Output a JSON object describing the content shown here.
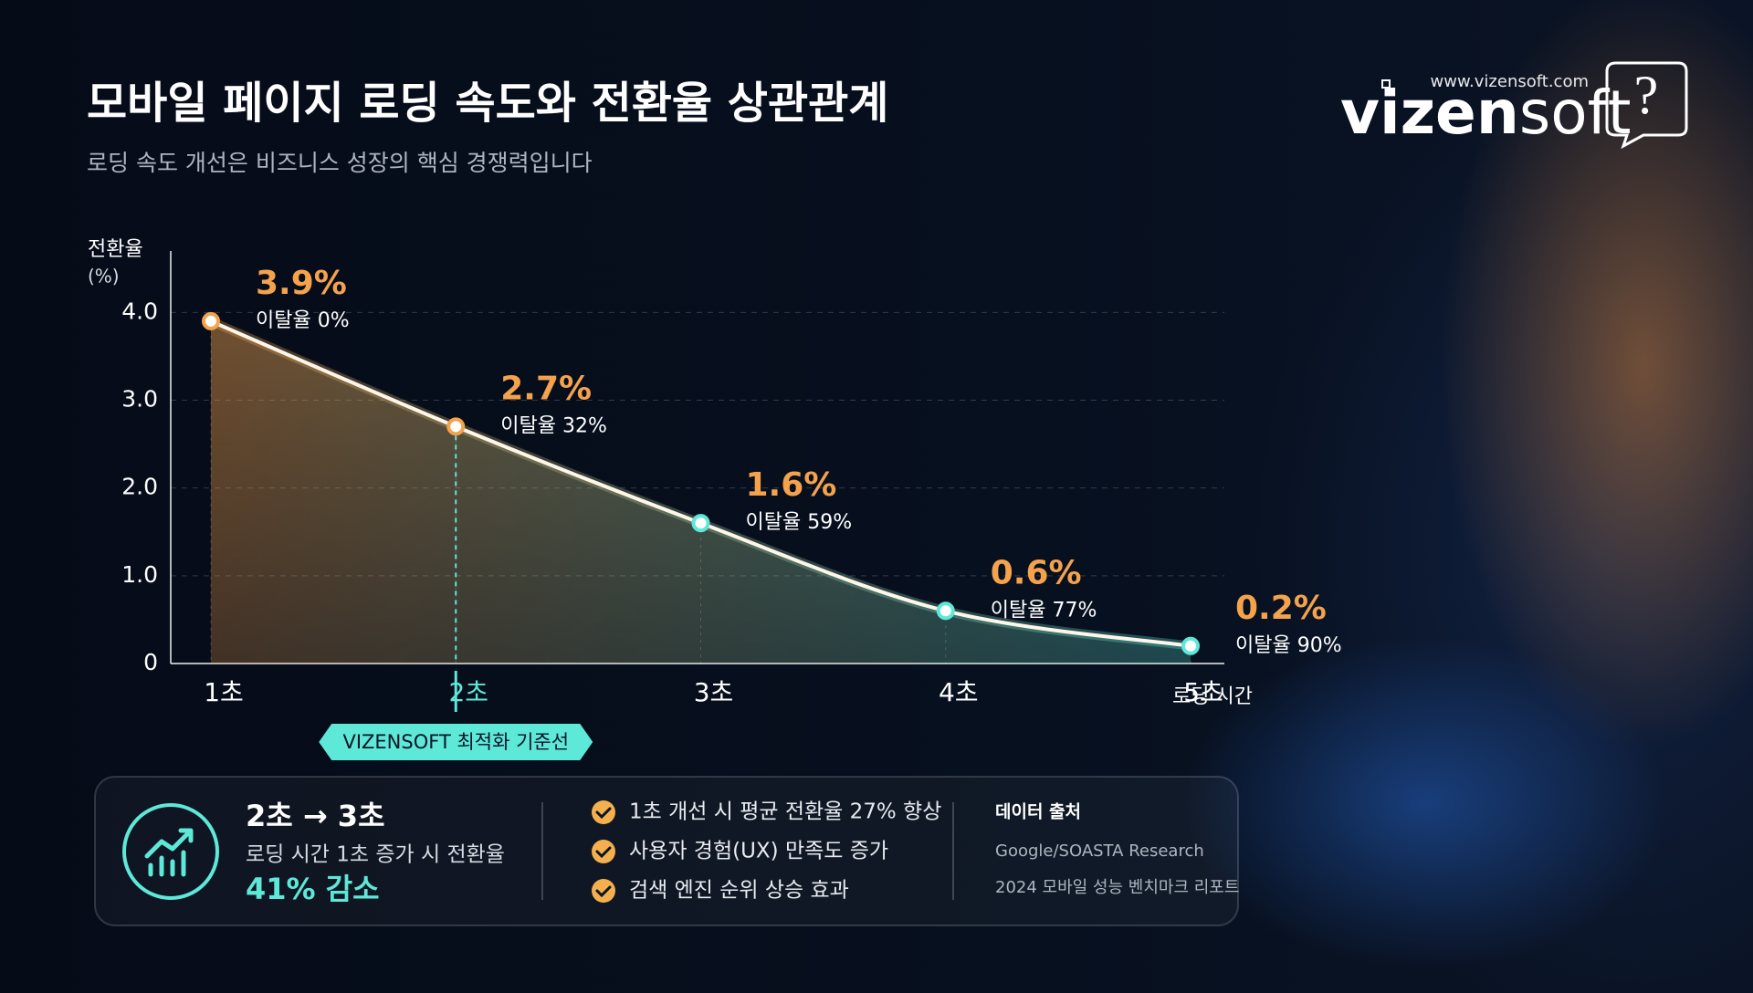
{
  "header": {
    "title": "모바일 페이지 로딩 속도와 전환율 상관관계",
    "subtitle": "로딩 속도 개선은 비즈니스 성장의 핵심 경쟁력입니다"
  },
  "logo": {
    "url": "www.vizensoft.com",
    "brand_bold": "vizen",
    "brand_light": "soft",
    "icon": "?"
  },
  "chart_data": {
    "type": "area",
    "y_label": "전환율",
    "y_unit": "(%)",
    "x_label": "로딩 시간",
    "categories": [
      "1초",
      "2초",
      "3초",
      "4초",
      "5초"
    ],
    "values": [
      3.9,
      2.7,
      1.6,
      0.6,
      0.2
    ],
    "value_labels": [
      "3.9%",
      "2.7%",
      "1.6%",
      "0.6%",
      "0.2%"
    ],
    "bounce_labels": [
      "이탈율 0%",
      "이탈율 32%",
      "이탈율 59%",
      "이탈율 77%",
      "이탈율 90%"
    ],
    "ylim": [
      0,
      4.7
    ],
    "yticks": [
      0,
      {
        "value": 1,
        "label": "1.0"
      },
      {
        "value": 2,
        "label": "2.0"
      },
      {
        "value": 3,
        "label": "3.0"
      },
      {
        "value": 4,
        "label": "4.0"
      }
    ],
    "grid": true,
    "color_start": "#f4a24c",
    "color_end": "#5ee8d8",
    "reference_line": {
      "category": "2초",
      "label": "VIZENSOFT 최적화 기준선"
    }
  },
  "summary": {
    "headline": "2초 → 3초",
    "description": "로딩 시간 1초 증가 시 전환율",
    "result": "41% 감소",
    "benefits": [
      "1초 개선 시 평균 전환율 27% 향상",
      "사용자 경험(UX) 만족도 증가",
      "검색 엔진 순위 상승 효과"
    ],
    "source_title": "데이터 출처",
    "sources": [
      "Google/SOASTA Research",
      "2024 모바일 성능 벤치마크 리포트"
    ]
  }
}
